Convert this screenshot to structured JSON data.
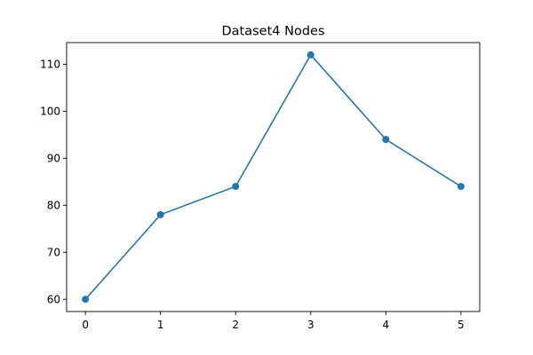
{
  "chart_data": {
    "type": "line",
    "title": "Dataset4 Nodes",
    "xlabel": "",
    "ylabel": "",
    "x": [
      0,
      1,
      2,
      3,
      4,
      5
    ],
    "series": [
      {
        "values": [
          60,
          78,
          84,
          112,
          94,
          84
        ],
        "color": "#1f77b4",
        "marker": "circle"
      }
    ],
    "xlim": [
      -0.25,
      5.25
    ],
    "ylim": [
      57.4,
      114.6
    ],
    "xticks": [
      0,
      1,
      2,
      3,
      4,
      5
    ],
    "yticks": [
      60,
      70,
      80,
      90,
      100,
      110
    ],
    "grid": false,
    "legend": "none"
  }
}
